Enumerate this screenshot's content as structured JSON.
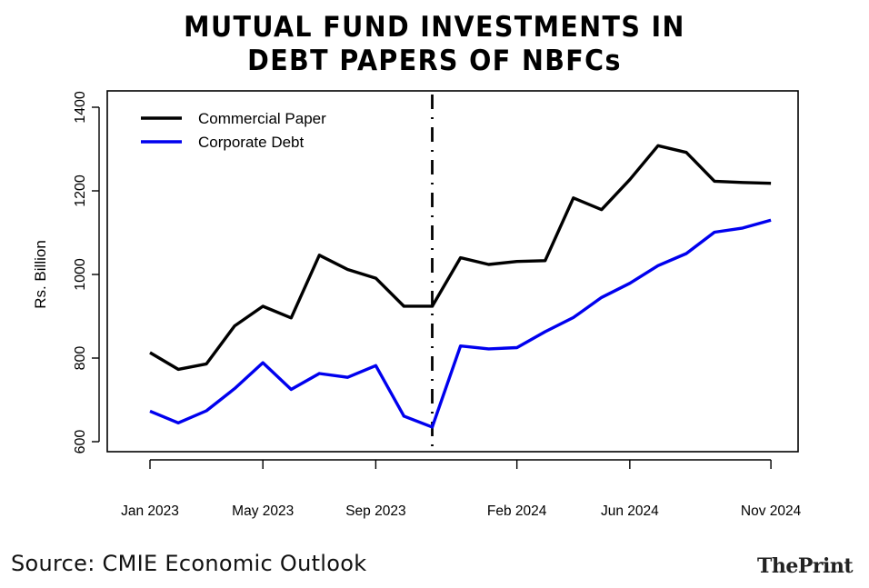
{
  "header": {
    "title_line1": "MUTUAL FUND INVESTMENTS IN",
    "title_line2": "DEBT PAPERS OF NBFCs"
  },
  "footer": {
    "source": "Source: CMIE Economic Outlook",
    "brand_the": "The",
    "brand_print": "Print"
  },
  "chart_data": {
    "type": "line",
    "title": "MUTUAL FUND INVESTMENTS IN DEBT PAPERS OF NBFCs",
    "xlabel": "",
    "ylabel": "Rs. Billion",
    "ylim": [
      600,
      1400
    ],
    "yticks": [
      600,
      800,
      1000,
      1200,
      1400
    ],
    "x_tick_labels": [
      {
        "index": 0,
        "label": "Jan 2023"
      },
      {
        "index": 4,
        "label": "May 2023"
      },
      {
        "index": 8,
        "label": "Sep 2023"
      },
      {
        "index": 13,
        "label": "Feb 2024"
      },
      {
        "index": 17,
        "label": "Jun 2024"
      },
      {
        "index": 22,
        "label": "Nov 2024"
      }
    ],
    "break_index": 10,
    "segments": [
      [
        0,
        9
      ],
      [
        10,
        22
      ]
    ],
    "legend_position": "top-left",
    "grid": false,
    "series": [
      {
        "name": "Commercial Paper",
        "color": "#000000",
        "values": [
          813,
          773,
          786,
          877,
          924,
          896,
          1046,
          1012,
          991,
          924,
          924,
          1040,
          1024,
          1031,
          1033,
          1183,
          1155,
          1227,
          1308,
          1292,
          1223,
          1220,
          1218
        ]
      },
      {
        "name": "Corporate Debt",
        "color": "#0000ee",
        "values": [
          673,
          645,
          674,
          727,
          789,
          725,
          763,
          754,
          782,
          661,
          635,
          829,
          822,
          825,
          863,
          897,
          945,
          979,
          1021,
          1050,
          1101,
          1111,
          1130
        ]
      }
    ]
  }
}
